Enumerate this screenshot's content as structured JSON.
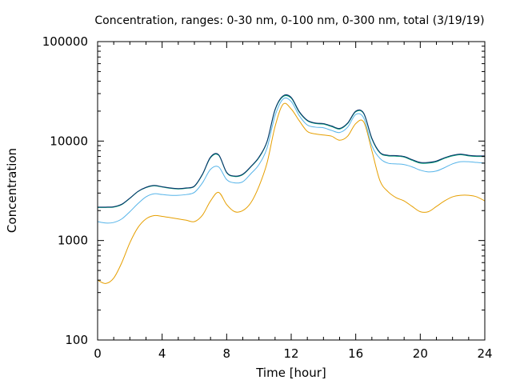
{
  "chart_data": {
    "type": "line",
    "title": "Concentration, ranges: 0-30 nm, 0-100 nm, 0-300 nm, total (3/19/19)",
    "xlabel": "Time [hour]",
    "ylabel": "Concentration",
    "xlim": [
      0,
      24
    ],
    "ylim": [
      100,
      100000
    ],
    "yscale": "log",
    "grid": false,
    "legend": "none",
    "x_ticks": [
      0,
      4,
      8,
      12,
      16,
      20,
      24
    ],
    "y_ticks": [
      100,
      1000,
      10000,
      100000
    ],
    "x": [
      0,
      0.5,
      1,
      1.5,
      2,
      2.5,
      3,
      3.5,
      4,
      4.5,
      5,
      5.5,
      6,
      6.5,
      7,
      7.5,
      8,
      8.5,
      9,
      9.5,
      10,
      10.5,
      11,
      11.5,
      12,
      12.5,
      13,
      13.5,
      14,
      14.5,
      15,
      15.5,
      16,
      16.5,
      17,
      17.5,
      18,
      18.5,
      19,
      19.5,
      20,
      20.5,
      21,
      21.5,
      22,
      22.5,
      23,
      23.5,
      24
    ],
    "series": [
      {
        "color": "#e69f00",
        "values": [
          400,
          370,
          420,
          600,
          950,
          1350,
          1650,
          1780,
          1750,
          1700,
          1650,
          1600,
          1550,
          1800,
          2500,
          3050,
          2300,
          1950,
          2000,
          2400,
          3500,
          6000,
          14000,
          23500,
          21000,
          16000,
          12500,
          11800,
          11500,
          11200,
          10200,
          11200,
          15000,
          15500,
          8000,
          4000,
          3100,
          2700,
          2500,
          2200,
          1950,
          1950,
          2200,
          2500,
          2750,
          2850,
          2850,
          2750,
          2500
        ]
      },
      {
        "color": "#56b4e9",
        "values": [
          1550,
          1500,
          1520,
          1650,
          1950,
          2350,
          2750,
          2950,
          2900,
          2850,
          2850,
          2900,
          3050,
          3800,
          5200,
          5500,
          4100,
          3800,
          3900,
          4700,
          5800,
          8500,
          18000,
          26500,
          25000,
          18000,
          14500,
          13800,
          13600,
          12800,
          12200,
          13800,
          18500,
          17000,
          9000,
          6700,
          6000,
          5900,
          5800,
          5500,
          5100,
          4900,
          5000,
          5400,
          5900,
          6200,
          6200,
          6100,
          6000
        ]
      },
      {
        "color": "#009e73",
        "values": [
          2150,
          2150,
          2170,
          2300,
          2650,
          3100,
          3400,
          3550,
          3450,
          3350,
          3300,
          3350,
          3500,
          4600,
          6800,
          7200,
          4800,
          4400,
          4600,
          5500,
          6800,
          9800,
          20500,
          28000,
          27000,
          19500,
          16000,
          15000,
          14800,
          14000,
          13200,
          15000,
          19700,
          18800,
          10500,
          7600,
          7100,
          7050,
          6900,
          6400,
          6000,
          6000,
          6200,
          6700,
          7100,
          7300,
          7100,
          7000,
          7000
        ]
      },
      {
        "color": "#08306b",
        "values": [
          2170,
          2170,
          2190,
          2320,
          2670,
          3120,
          3430,
          3580,
          3480,
          3380,
          3330,
          3380,
          3530,
          4650,
          6900,
          7300,
          4850,
          4450,
          4650,
          5550,
          6900,
          9900,
          20800,
          28500,
          27500,
          19800,
          16200,
          15200,
          15000,
          14200,
          13400,
          15200,
          20000,
          19000,
          10700,
          7700,
          7200,
          7150,
          7000,
          6500,
          6100,
          6100,
          6300,
          6800,
          7200,
          7400,
          7200,
          7100,
          7100
        ]
      }
    ]
  }
}
